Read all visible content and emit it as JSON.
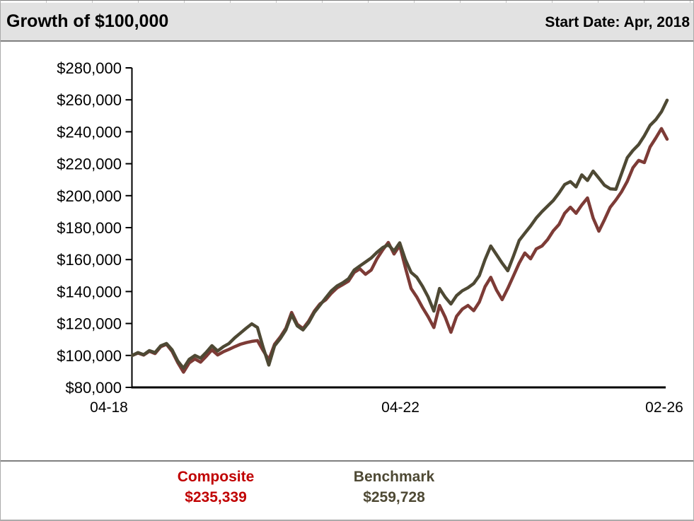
{
  "header": {
    "title": "Growth of $100,000",
    "start_date_label": "Start Date: Apr, 2018"
  },
  "legend": {
    "composite_label": "Composite",
    "composite_value": "$235,339",
    "benchmark_label": "Benchmark",
    "benchmark_value": "$259,728"
  },
  "colors": {
    "composite_line": "#7D3B36",
    "benchmark_line": "#4E4934",
    "composite_legend_text": "#C00000",
    "benchmark_legend_text": "#4E4934",
    "header_bg": "#E2E2E2",
    "axis": "#000000"
  },
  "chart_data": {
    "type": "line",
    "title": "Growth of $100,000",
    "start_month": "2018-04",
    "end_month": "2026-02",
    "frequency": "monthly",
    "grid": false,
    "legend_position": "bottom",
    "ylim": [
      80000,
      280000
    ],
    "y_ticks": [
      80000,
      100000,
      120000,
      140000,
      160000,
      180000,
      200000,
      220000,
      240000,
      260000,
      280000
    ],
    "y_tick_format": "$#,##0",
    "x_tick_labels": [
      {
        "label": "04-18",
        "month_index": 0
      },
      {
        "label": "04-22",
        "month_index": 48
      },
      {
        "label": "02-26",
        "month_index": 94
      }
    ],
    "series": [
      {
        "name": "Composite",
        "color": "#7D3B36",
        "label_color": "#C00000",
        "final_value": 235339,
        "values": [
          100000,
          101500,
          100200,
          102600,
          101200,
          105500,
          107000,
          102500,
          95500,
          89500,
          95300,
          97800,
          95800,
          99500,
          103500,
          100300,
          102300,
          103800,
          105500,
          107000,
          108000,
          108800,
          109300,
          103000,
          97300,
          107000,
          111500,
          117000,
          126900,
          119500,
          116800,
          121500,
          127800,
          132300,
          134800,
          139000,
          142300,
          144400,
          146500,
          152000,
          154200,
          150800,
          153500,
          160500,
          166000,
          170700,
          163500,
          168800,
          155000,
          141900,
          136600,
          130000,
          124200,
          117500,
          131300,
          124000,
          114500,
          124500,
          129000,
          131300,
          128000,
          133500,
          143000,
          148900,
          141000,
          134900,
          142000,
          149900,
          157800,
          164100,
          160500,
          166700,
          168500,
          172500,
          178000,
          182000,
          189000,
          192800,
          189000,
          194200,
          198600,
          186000,
          177800,
          185000,
          192800,
          197300,
          202500,
          209000,
          217500,
          222100,
          220700,
          230500,
          236000,
          242000,
          235339
        ]
      },
      {
        "name": "Benchmark",
        "color": "#4E4934",
        "label_color": "#4E4934",
        "final_value": 259728,
        "values": [
          100000,
          101800,
          100500,
          103000,
          101800,
          106000,
          107500,
          103500,
          96500,
          92000,
          97500,
          100000,
          98300,
          102000,
          106100,
          102800,
          105500,
          107500,
          111000,
          114000,
          117000,
          119800,
          117500,
          105000,
          94000,
          106000,
          110500,
          116000,
          125500,
          118500,
          116000,
          120500,
          127000,
          131500,
          136000,
          140500,
          143500,
          145500,
          148000,
          153500,
          156000,
          158500,
          161000,
          164500,
          167500,
          169300,
          165400,
          170500,
          160000,
          152000,
          149000,
          143300,
          136600,
          127800,
          141900,
          136500,
          132200,
          137500,
          140500,
          142400,
          145000,
          150000,
          160000,
          168500,
          163200,
          157800,
          153000,
          162300,
          172000,
          176500,
          181000,
          186000,
          190000,
          193500,
          197000,
          201700,
          207000,
          208800,
          205500,
          213000,
          209500,
          215400,
          211000,
          206500,
          204300,
          204000,
          214000,
          223800,
          228300,
          232000,
          237500,
          244000,
          247500,
          252500,
          259728
        ]
      }
    ]
  }
}
